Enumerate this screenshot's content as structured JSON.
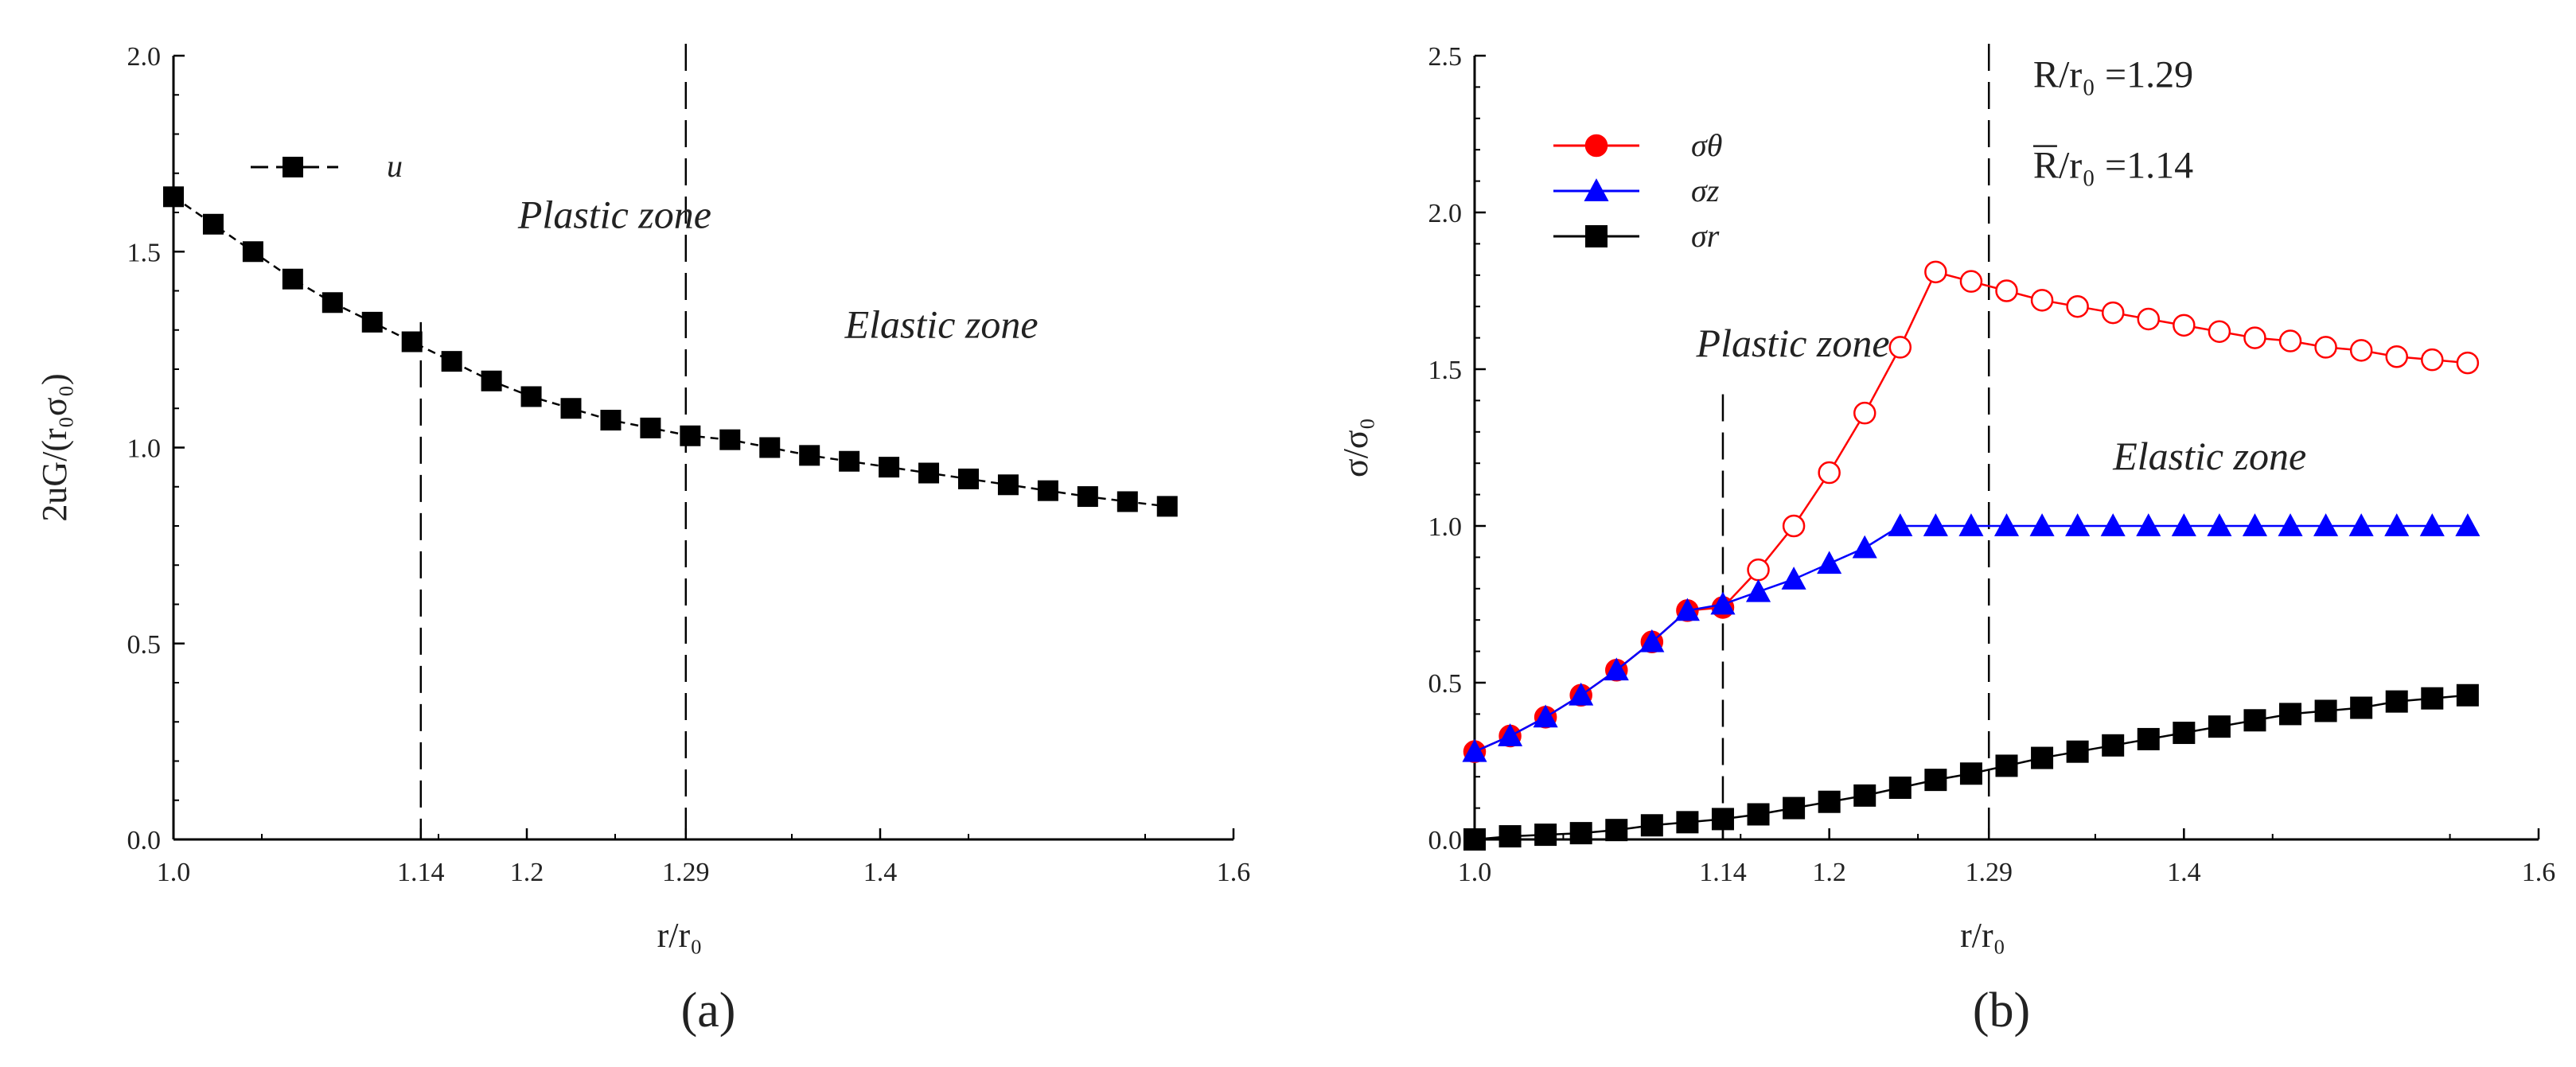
{
  "chart_data": [
    {
      "type": "line",
      "panel": "(a)",
      "xlabel": "r/r₀",
      "ylabel": "2uG/(r₀σ₀)",
      "xlim": [
        1.0,
        1.6
      ],
      "ylim": [
        0.0,
        2.0
      ],
      "xticks": [
        {
          "value": 1.0,
          "label": "1.0"
        },
        {
          "value": 1.14,
          "label": "1.14"
        },
        {
          "value": 1.2,
          "label": "1.2"
        },
        {
          "value": 1.29,
          "label": "1.29"
        },
        {
          "value": 1.4,
          "label": "1.4"
        },
        {
          "value": 1.6,
          "label": "1.6"
        }
      ],
      "yticks": [
        {
          "value": 0.0,
          "label": "0.0"
        },
        {
          "value": 0.5,
          "label": "0.5"
        },
        {
          "value": 1.0,
          "label": "1.0"
        },
        {
          "value": 1.5,
          "label": "1.5"
        },
        {
          "value": 2.0,
          "label": "2.0"
        }
      ],
      "vlines": [
        1.14,
        1.29
      ],
      "annotations": [
        {
          "text": "Plastic zone",
          "x": 1.195,
          "y": 1.56
        },
        {
          "text": "Elastic zone",
          "x": 1.38,
          "y": 1.28
        }
      ],
      "series": [
        {
          "name": "u",
          "color": "#000000",
          "marker": "square",
          "x": [
            1.0,
            1.0225,
            1.045,
            1.0675,
            1.09,
            1.1125,
            1.135,
            1.1575,
            1.18,
            1.2025,
            1.225,
            1.2475,
            1.27,
            1.2925,
            1.315,
            1.3375,
            1.36,
            1.3825,
            1.405,
            1.4275,
            1.45,
            1.4725,
            1.495,
            1.5175,
            1.54,
            1.5625
          ],
          "y": [
            1.64,
            1.57,
            1.5,
            1.43,
            1.37,
            1.32,
            1.27,
            1.22,
            1.17,
            1.13,
            1.1,
            1.07,
            1.05,
            1.03,
            1.02,
            1.0,
            0.98,
            0.965,
            0.95,
            0.935,
            0.92,
            0.905,
            0.89,
            0.875,
            0.862,
            0.85
          ]
        }
      ]
    },
    {
      "type": "line",
      "panel": "(b)",
      "xlabel": "r/r₀",
      "ylabel": "σ/σ₀",
      "xlim": [
        1.0,
        1.6
      ],
      "ylim": [
        0.0,
        2.5
      ],
      "xticks": [
        {
          "value": 1.0,
          "label": "1.0"
        },
        {
          "value": 1.14,
          "label": "1.14"
        },
        {
          "value": 1.2,
          "label": "1.2"
        },
        {
          "value": 1.29,
          "label": "1.29"
        },
        {
          "value": 1.4,
          "label": "1.4"
        },
        {
          "value": 1.6,
          "label": "1.6"
        }
      ],
      "yticks": [
        {
          "value": 0.0,
          "label": "0.0"
        },
        {
          "value": 0.5,
          "label": "0.5"
        },
        {
          "value": 1.0,
          "label": "1.0"
        },
        {
          "value": 1.5,
          "label": "1.5"
        },
        {
          "value": 2.0,
          "label": "2.0"
        },
        {
          "value": 2.5,
          "label": "2.5"
        }
      ],
      "vlines": [
        1.14,
        1.29
      ],
      "annotations": [
        {
          "text": "Plastic zone",
          "x": 1.125,
          "y": 1.54
        },
        {
          "text": "Elastic zone",
          "x": 1.36,
          "y": 1.18
        },
        {
          "text": "R/r₀ =1.29",
          "x": 1.315,
          "y": 2.4
        },
        {
          "text": "R/r₀ =1.14",
          "x": 1.315,
          "y": 2.11,
          "overline": "R"
        }
      ],
      "series": [
        {
          "name": "σθ",
          "color": "#ff0000",
          "marker": "circle",
          "x": [
            1.0,
            1.02,
            1.04,
            1.06,
            1.08,
            1.1,
            1.12,
            1.14,
            1.16,
            1.18,
            1.2,
            1.22,
            1.24,
            1.26,
            1.28,
            1.3,
            1.32,
            1.34,
            1.36,
            1.38,
            1.4,
            1.42,
            1.44,
            1.46,
            1.48,
            1.5,
            1.52,
            1.54,
            1.56
          ],
          "y": [
            0.28,
            0.33,
            0.39,
            0.46,
            0.54,
            0.63,
            0.73,
            0.74,
            0.86,
            1.0,
            1.17,
            1.36,
            1.57,
            1.81,
            1.78,
            1.75,
            1.72,
            1.7,
            1.68,
            1.66,
            1.64,
            1.62,
            1.6,
            1.59,
            1.57,
            1.56,
            1.54,
            1.53,
            1.52
          ]
        },
        {
          "name": "σz",
          "color": "#0000ff",
          "marker": "triangle",
          "x": [
            1.0,
            1.02,
            1.04,
            1.06,
            1.08,
            1.1,
            1.12,
            1.14,
            1.16,
            1.18,
            1.2,
            1.22,
            1.24,
            1.26,
            1.28,
            1.3,
            1.32,
            1.34,
            1.36,
            1.38,
            1.4,
            1.42,
            1.44,
            1.46,
            1.48,
            1.5,
            1.52,
            1.54,
            1.56
          ],
          "y": [
            0.28,
            0.33,
            0.39,
            0.46,
            0.54,
            0.63,
            0.73,
            0.75,
            0.79,
            0.83,
            0.88,
            0.93,
            1.0,
            1.0,
            1.0,
            1.0,
            1.0,
            1.0,
            1.0,
            1.0,
            1.0,
            1.0,
            1.0,
            1.0,
            1.0,
            1.0,
            1.0,
            1.0,
            1.0
          ]
        },
        {
          "name": "σr",
          "color": "#000000",
          "marker": "square",
          "x": [
            1.0,
            1.02,
            1.04,
            1.06,
            1.08,
            1.1,
            1.12,
            1.14,
            1.16,
            1.18,
            1.2,
            1.22,
            1.24,
            1.26,
            1.28,
            1.3,
            1.32,
            1.34,
            1.36,
            1.38,
            1.4,
            1.42,
            1.44,
            1.46,
            1.48,
            1.5,
            1.52,
            1.54,
            1.56
          ],
          "y": [
            0.0,
            0.01,
            0.015,
            0.02,
            0.03,
            0.045,
            0.055,
            0.065,
            0.08,
            0.1,
            0.12,
            0.14,
            0.165,
            0.19,
            0.21,
            0.235,
            0.26,
            0.28,
            0.3,
            0.32,
            0.34,
            0.36,
            0.38,
            0.4,
            0.41,
            0.42,
            0.44,
            0.45,
            0.46
          ]
        }
      ]
    }
  ]
}
